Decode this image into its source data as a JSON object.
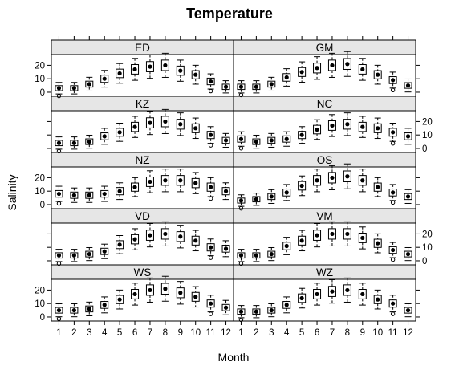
{
  "chart_data": {
    "type": "boxplot",
    "title": "Temperature",
    "xlabel": "Month",
    "ylabel": "Salinity",
    "x_ticks": [
      "1",
      "2",
      "3",
      "4",
      "5",
      "6",
      "7",
      "8",
      "9",
      "10",
      "11",
      "12"
    ],
    "y_ticks": [
      "0",
      "10",
      "20"
    ],
    "ylim": [
      -3,
      28
    ],
    "layout": {
      "columns": 2,
      "rows": 5
    },
    "colors": {
      "strip_fill": "#e6e6e6",
      "frame": "#000000",
      "box": "#000000"
    },
    "panels": [
      {
        "name": "WS",
        "medians": [
          5,
          5,
          6,
          9,
          13,
          17,
          20,
          21,
          18,
          15,
          10,
          7
        ]
      },
      {
        "name": "WZ",
        "medians": [
          4,
          4,
          5,
          9,
          14,
          17,
          19,
          20,
          17,
          13,
          10,
          5
        ]
      },
      {
        "name": "VD",
        "medians": [
          4,
          4,
          5,
          7,
          12,
          16,
          19,
          20,
          18,
          15,
          10,
          9
        ]
      },
      {
        "name": "VM",
        "medians": [
          4,
          4,
          5,
          11,
          15,
          19,
          20,
          20,
          17,
          13,
          8,
          5
        ]
      },
      {
        "name": "NZ",
        "medians": [
          8,
          7,
          7,
          8,
          10,
          13,
          17,
          18,
          18,
          16,
          13,
          10
        ]
      },
      {
        "name": "OS",
        "medians": [
          3,
          4,
          6,
          9,
          14,
          18,
          20,
          21,
          18,
          13,
          9,
          6
        ]
      },
      {
        "name": "KZ",
        "medians": [
          4,
          4,
          5,
          9,
          12,
          16,
          19,
          20,
          18,
          15,
          10,
          6
        ]
      },
      {
        "name": "NC",
        "medians": [
          7,
          5,
          6,
          7,
          10,
          14,
          17,
          18,
          16,
          15,
          12,
          9
        ]
      },
      {
        "name": "ED",
        "medians": [
          3,
          3,
          6,
          10,
          14,
          17,
          19,
          20,
          16,
          13,
          8,
          4
        ]
      },
      {
        "name": "GM",
        "medians": [
          4,
          4,
          6,
          11,
          15,
          18,
          20,
          21,
          17,
          13,
          9,
          5
        ]
      }
    ]
  }
}
